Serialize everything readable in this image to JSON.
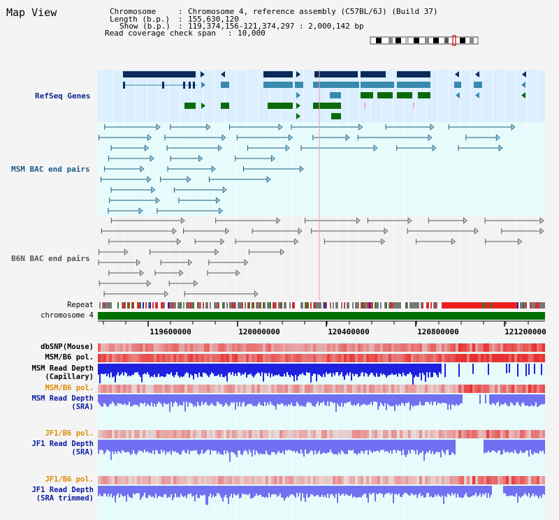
{
  "app": {
    "title": "Map View"
  },
  "info": {
    "chromosome_label": "Chromosome",
    "chromosome_value": "Chromosome 4, reference assembly (C57BL/6J) (Build 37)",
    "length_label": "Length (b.p.)",
    "length_value": "155,630,120",
    "show_label": "Show (b.p.)",
    "show_value": "119,374,156-121,374,297 : 2,000,142 bp",
    "span_label": "Read coverage check span",
    "span_value": "10,000",
    "separator": ":"
  },
  "tracks": {
    "refseq": {
      "label": "RefSeq Genes",
      "color": "#0a2a8a"
    },
    "msm_bac": {
      "label": "MSM BAC end pairs",
      "color": "#1a5a8a"
    },
    "b6n_bac": {
      "label": "B6N BAC end pairs",
      "color": "#555555"
    },
    "repeat": {
      "label": "Repeat"
    },
    "chromosome": {
      "label": "chromosome 4",
      "color": "#007000"
    },
    "dbsnp": {
      "label": "dbSNP(Mouse)"
    },
    "msm_pol": {
      "label": "MSM/B6 pol."
    },
    "msm_cap_line1": "MSM Read Depth",
    "msm_cap_line2": "(Capillary)",
    "msm_sra_pol": {
      "label": "MSM/B6 pol.",
      "color": "#e08a00"
    },
    "msm_sra_line1": "MSM Read Depth",
    "msm_sra_line2": "(SRA)",
    "jf1_pol": {
      "label": "JF1/B6 pol.",
      "color": "#e08a00"
    },
    "jf1_sra_line1": "JF1 Read Depth",
    "jf1_sra_line2": "(SRA)",
    "jf1_trim_pol": {
      "label": "JF1/B6 pol.",
      "color": "#e08a00"
    },
    "jf1_trim_line1": "JF1 Read Depth",
    "jf1_trim_line2": "(SRA trimmed)"
  },
  "axis": {
    "ticks": [
      "119600000",
      "120000000",
      "120400000",
      "120800000",
      "121200000"
    ]
  },
  "colors": {
    "refseq_bg": "#dcefff",
    "panel_bg": "#e6fbfb",
    "gene_dark": "#0a2a5a",
    "gene_mid": "#3a8ab0",
    "gene_green": "#0a6a0a",
    "bac_msm": "#1a5a7a",
    "bac_b6n": "#555555",
    "depth_blue": "#2020e0",
    "depth_light": "#7070f0",
    "pol_red": "#e83030"
  }
}
